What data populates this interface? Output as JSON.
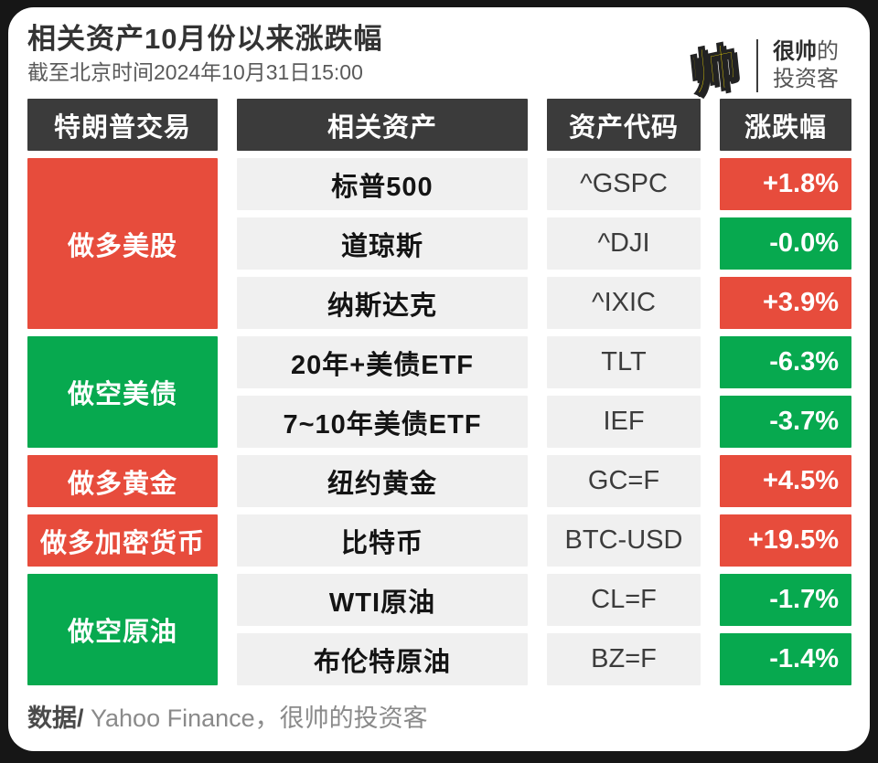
{
  "header": {
    "title": "相关资产10月份以来涨跌幅",
    "subtitle": "截至北京时间2024年10月31日15:00"
  },
  "logo": {
    "glyph": "帅",
    "brand_line1_bold": "很帅",
    "brand_line1_rest": "的",
    "brand_line2": "投资客"
  },
  "colors": {
    "red": "#e74c3c",
    "green": "#07a94f",
    "header_bg": "#3b3b3b",
    "cell_bg": "#f0f0f0",
    "brand_yellow": "#ffe600"
  },
  "chart_data": {
    "type": "table",
    "title": "相关资产10月份以来涨跌幅",
    "as_of": "截至北京时间2024年10月31日15:00",
    "columns": [
      "特朗普交易",
      "相关资产",
      "资产代码",
      "涨跌幅"
    ],
    "groups": [
      {
        "label": "做多美股",
        "color": "red",
        "rows": 3
      },
      {
        "label": "做空美债",
        "color": "green",
        "rows": 2
      },
      {
        "label": "做多黄金",
        "color": "red",
        "rows": 1
      },
      {
        "label": "做多加密货币",
        "color": "red",
        "rows": 1
      },
      {
        "label": "做空原油",
        "color": "green",
        "rows": 2
      }
    ],
    "rows": [
      {
        "asset": "标普500",
        "code": "^GSPC",
        "change": "+1.8%",
        "change_value": 1.8,
        "color": "red"
      },
      {
        "asset": "道琼斯",
        "code": "^DJI",
        "change": "-0.0%",
        "change_value": -0.0,
        "color": "green"
      },
      {
        "asset": "纳斯达克",
        "code": "^IXIC",
        "change": "+3.9%",
        "change_value": 3.9,
        "color": "red"
      },
      {
        "asset": "20年+美债ETF",
        "code": "TLT",
        "change": "-6.3%",
        "change_value": -6.3,
        "color": "green"
      },
      {
        "asset": "7~10年美债ETF",
        "code": "IEF",
        "change": "-3.7%",
        "change_value": -3.7,
        "color": "green"
      },
      {
        "asset": "纽约黄金",
        "code": "GC=F",
        "change": "+4.5%",
        "change_value": 4.5,
        "color": "red"
      },
      {
        "asset": "比特币",
        "code": "BTC-USD",
        "change": "+19.5%",
        "change_value": 19.5,
        "color": "red"
      },
      {
        "asset": "WTI原油",
        "code": "CL=F",
        "change": "-1.7%",
        "change_value": -1.7,
        "color": "green"
      },
      {
        "asset": "布伦特原油",
        "code": "BZ=F",
        "change": "-1.4%",
        "change_value": -1.4,
        "color": "green"
      }
    ]
  },
  "footer": {
    "prefix": "数据/",
    "source": " Yahoo Finance，很帅的投资客"
  }
}
